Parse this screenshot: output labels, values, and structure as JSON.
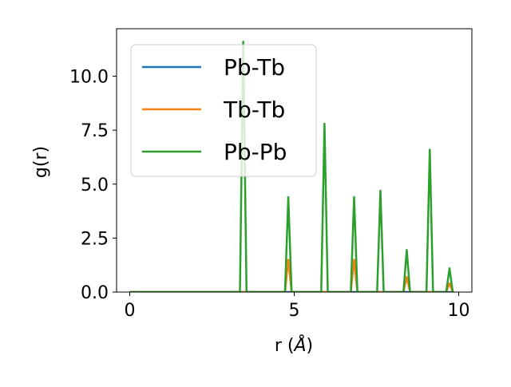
{
  "chart_data": {
    "type": "line",
    "xlabel_prefix": "r (",
    "xlabel_unit": "Å",
    "xlabel_suffix": ")",
    "ylabel": "g(r)",
    "xlim": [
      -0.4,
      10.4
    ],
    "ylim": [
      0,
      12.2
    ],
    "xticks": [
      0,
      5,
      10
    ],
    "xtick_labels": [
      "0",
      "5",
      "10"
    ],
    "yticks": [
      0,
      2.5,
      5,
      7.5,
      10
    ],
    "ytick_labels": [
      "0.0",
      "2.5",
      "5.0",
      "7.5",
      "10.0"
    ],
    "grid": false,
    "legend_position": "upper-left",
    "peak_halfwidth": 0.1,
    "x_max": 9.85,
    "series": [
      {
        "name": "Pb-Tb",
        "color": "#1f77b4",
        "peaks": [
          [
            3.45,
            0.0
          ],
          [
            4.82,
            0.0
          ],
          [
            5.92,
            0.0
          ],
          [
            6.82,
            0.0
          ],
          [
            7.62,
            0.0
          ],
          [
            8.42,
            0.0
          ],
          [
            9.12,
            0.0
          ],
          [
            9.72,
            0.0
          ]
        ]
      },
      {
        "name": "Tb-Tb",
        "color": "#ff7f0e",
        "peaks": [
          [
            3.45,
            0.0
          ],
          [
            4.82,
            1.5
          ],
          [
            5.92,
            0.0
          ],
          [
            6.82,
            1.5
          ],
          [
            7.62,
            0.0
          ],
          [
            8.42,
            0.7
          ],
          [
            9.12,
            0.0
          ],
          [
            9.72,
            0.4
          ]
        ]
      },
      {
        "name": "Pb-Pb",
        "color": "#2ca02c",
        "peaks": [
          [
            3.45,
            11.6
          ],
          [
            4.82,
            4.4
          ],
          [
            5.92,
            7.8
          ],
          [
            6.82,
            4.4
          ],
          [
            7.62,
            4.7
          ],
          [
            8.42,
            1.95
          ],
          [
            9.12,
            6.6
          ],
          [
            9.72,
            1.1
          ]
        ]
      }
    ]
  }
}
